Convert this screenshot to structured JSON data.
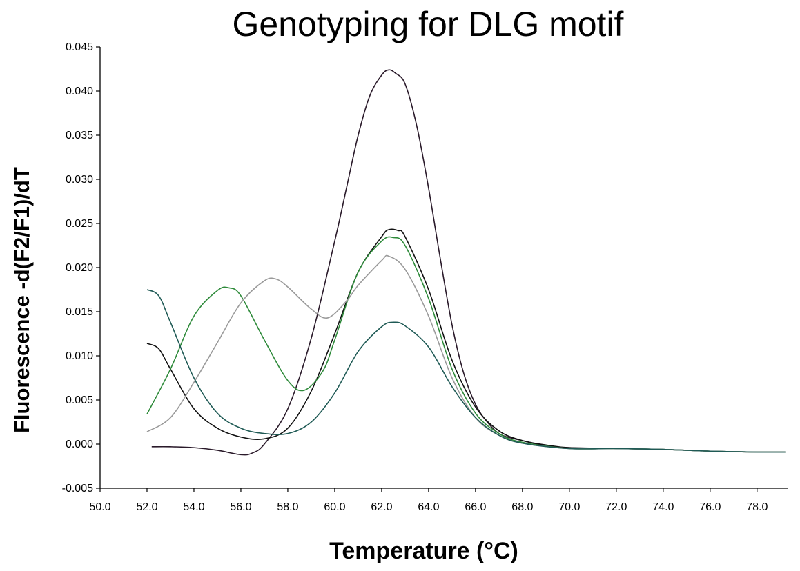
{
  "chart_data": {
    "type": "line",
    "title": "Genotyping for DLG motif",
    "xlabel": "Temperature (°C)",
    "ylabel": "Fluorescence -d(F2/F1)/dT",
    "xlim": [
      50.0,
      79.3
    ],
    "ylim": [
      -0.005,
      0.045
    ],
    "xticks": [
      "50.0",
      "52.0",
      "54.0",
      "56.0",
      "58.0",
      "60.0",
      "62.0",
      "64.0",
      "66.0",
      "68.0",
      "70.0",
      "72.0",
      "74.0",
      "76.0",
      "78.0"
    ],
    "yticks": [
      "-0.005",
      "0.000",
      "0.005",
      "0.010",
      "0.015",
      "0.020",
      "0.025",
      "0.030",
      "0.035",
      "0.040",
      "0.045"
    ],
    "grid": false,
    "series": [
      {
        "color": "#2a1a2a",
        "x": [
          52.2,
          53.0,
          54.0,
          55.0,
          56.0,
          56.5,
          57.0,
          58.0,
          59.0,
          60.0,
          60.5,
          61.0,
          61.5,
          62.0,
          62.3,
          62.6,
          63.0,
          63.5,
          64.0,
          64.5,
          65.0,
          65.5,
          66.0,
          66.5,
          67.0,
          67.5,
          68.0,
          69.0,
          70.0,
          72.0,
          74.0,
          76.0,
          78.0,
          79.2
        ],
        "y": [
          -0.0003,
          -0.0003,
          -0.0004,
          -0.0007,
          -0.0012,
          -0.001,
          0.0,
          0.004,
          0.012,
          0.023,
          0.029,
          0.035,
          0.0395,
          0.0418,
          0.0424,
          0.042,
          0.0408,
          0.036,
          0.029,
          0.021,
          0.0135,
          0.008,
          0.0045,
          0.0025,
          0.0012,
          0.0007,
          0.0004,
          -0.0002,
          -0.0004,
          -0.0005,
          -0.0006,
          -0.0008,
          -0.0009,
          -0.0009
        ]
      },
      {
        "color": "#111111",
        "x": [
          52.0,
          52.5,
          53.0,
          54.0,
          55.0,
          56.0,
          57.0,
          58.0,
          59.0,
          60.0,
          61.0,
          62.0,
          62.3,
          62.7,
          63.0,
          64.0,
          65.0,
          66.0,
          67.0,
          68.0,
          69.0,
          70.0,
          72.0,
          74.0,
          76.0,
          78.0,
          79.2
        ],
        "y": [
          0.0114,
          0.0108,
          0.0085,
          0.004,
          0.0018,
          0.0008,
          0.0006,
          0.0018,
          0.006,
          0.0125,
          0.0195,
          0.0235,
          0.0243,
          0.0242,
          0.0235,
          0.0175,
          0.0095,
          0.0042,
          0.0015,
          0.0004,
          -0.0001,
          -0.0004,
          -0.0005,
          -0.0006,
          -0.0008,
          -0.0009,
          -0.0009
        ]
      },
      {
        "color": "#2e8a3a",
        "x": [
          52.0,
          53.0,
          54.0,
          55.0,
          55.5,
          56.0,
          57.0,
          58.0,
          58.7,
          59.5,
          60.0,
          61.0,
          62.0,
          62.5,
          63.0,
          64.0,
          65.0,
          66.0,
          67.0,
          68.0,
          70.0,
          72.0,
          74.0,
          76.0,
          78.0,
          79.2
        ],
        "y": [
          0.0034,
          0.0085,
          0.0145,
          0.0174,
          0.0177,
          0.0168,
          0.0118,
          0.0072,
          0.0061,
          0.0083,
          0.0118,
          0.0195,
          0.023,
          0.0234,
          0.0225,
          0.0165,
          0.0085,
          0.0035,
          0.0012,
          0.0002,
          -0.0005,
          -0.0005,
          -0.0006,
          -0.0008,
          -0.0009,
          -0.0009
        ]
      },
      {
        "color": "#9a9a9a",
        "x": [
          52.0,
          53.0,
          54.0,
          55.0,
          56.0,
          57.0,
          57.5,
          58.0,
          59.0,
          59.7,
          60.5,
          61.0,
          62.0,
          62.3,
          63.0,
          64.0,
          65.0,
          66.0,
          67.0,
          68.0,
          70.0,
          72.0,
          74.0,
          76.0,
          78.0,
          79.2
        ],
        "y": [
          0.0014,
          0.003,
          0.007,
          0.0115,
          0.016,
          0.0185,
          0.0187,
          0.0178,
          0.0153,
          0.0143,
          0.0162,
          0.018,
          0.0208,
          0.0213,
          0.0198,
          0.0145,
          0.0075,
          0.003,
          0.001,
          0.0001,
          -0.0005,
          -0.0005,
          -0.0006,
          -0.0008,
          -0.0009,
          -0.0009
        ]
      },
      {
        "color": "#1f5a55",
        "x": [
          52.0,
          52.5,
          53.0,
          54.0,
          55.0,
          56.0,
          57.0,
          58.0,
          59.0,
          60.0,
          61.0,
          62.0,
          62.5,
          63.0,
          64.0,
          65.0,
          66.0,
          67.0,
          68.0,
          70.0,
          72.0,
          74.0,
          76.0,
          78.0,
          79.2
        ],
        "y": [
          0.0175,
          0.0168,
          0.0138,
          0.0075,
          0.0035,
          0.0018,
          0.0012,
          0.0012,
          0.0025,
          0.0058,
          0.0105,
          0.0133,
          0.0138,
          0.0134,
          0.011,
          0.0065,
          0.003,
          0.001,
          0.0001,
          -0.0005,
          -0.0005,
          -0.0006,
          -0.0008,
          -0.0009,
          -0.0009
        ]
      }
    ]
  }
}
